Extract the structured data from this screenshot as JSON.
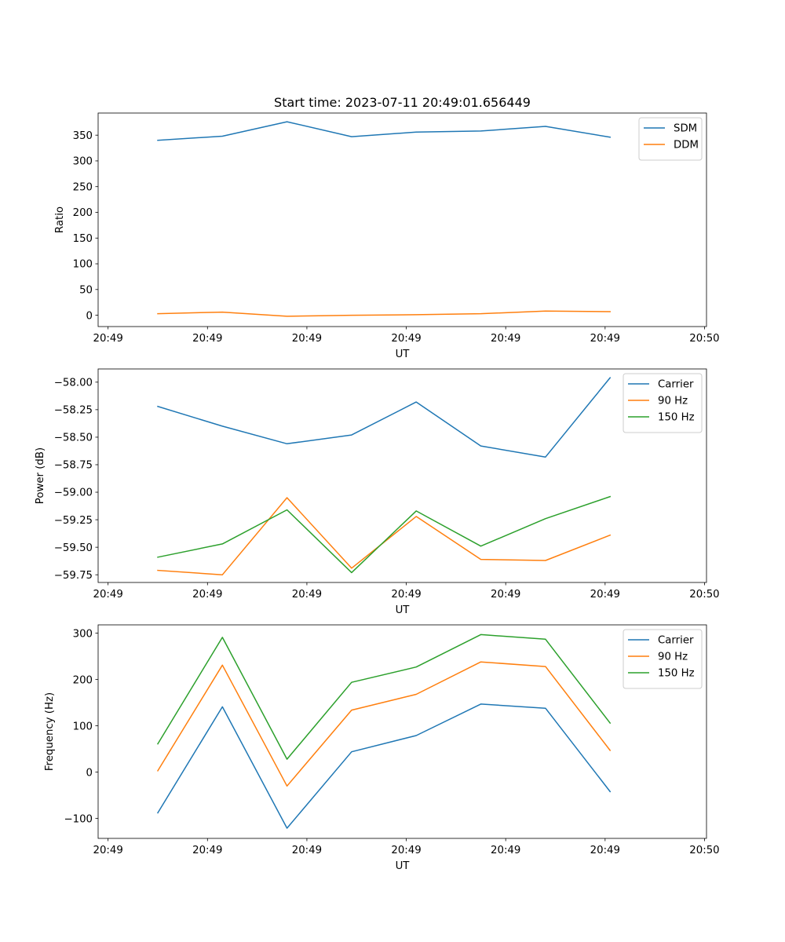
{
  "figure": {
    "title": "Start time: 2023-07-11 20:49:01.656449"
  },
  "colors": {
    "SDM": "#1f77b4",
    "DDM": "#ff7f0e",
    "Carrier": "#1f77b4",
    "90 Hz": "#ff7f0e",
    "150 Hz": "#2ca02c"
  },
  "chart_data": [
    {
      "type": "line",
      "title": "Start time: 2023-07-11 20:49:01.656449",
      "xlabel": "UT",
      "ylabel": "Ratio",
      "x_tick_labels": [
        "20:49",
        "20:49",
        "20:49",
        "20:49",
        "20:49",
        "20:49",
        "20:50"
      ],
      "x_tick_values": [
        0,
        1,
        2,
        3,
        4,
        5,
        6
      ],
      "x": [
        0.5,
        1.15,
        1.8,
        2.45,
        3.1,
        3.75,
        4.4,
        5.05
      ],
      "xlim": [
        -0.1,
        6.02
      ],
      "ylim": [
        -22,
        393
      ],
      "y_ticks": [
        0,
        50,
        100,
        150,
        200,
        250,
        300,
        350
      ],
      "y_tick_labels": [
        "0",
        "50",
        "100",
        "150",
        "200",
        "250",
        "300",
        "350"
      ],
      "legend": "top-right",
      "series": [
        {
          "name": "SDM",
          "values": [
            340,
            348,
            376,
            347,
            356,
            358,
            367,
            346
          ]
        },
        {
          "name": "DDM",
          "values": [
            3,
            6,
            -2,
            0,
            1,
            3,
            8,
            7
          ]
        }
      ]
    },
    {
      "type": "line",
      "title": "",
      "xlabel": "UT",
      "ylabel": "Power (dB)",
      "x_tick_labels": [
        "20:49",
        "20:49",
        "20:49",
        "20:49",
        "20:49",
        "20:49",
        "20:50"
      ],
      "x_tick_values": [
        0,
        1,
        2,
        3,
        4,
        5,
        6
      ],
      "x": [
        0.5,
        1.15,
        1.8,
        2.45,
        3.1,
        3.75,
        4.4,
        5.05
      ],
      "xlim": [
        -0.1,
        6.02
      ],
      "ylim": [
        -59.82,
        -57.88
      ],
      "y_ticks": [
        -59.75,
        -59.5,
        -59.25,
        -59.0,
        -58.75,
        -58.5,
        -58.25,
        -58.0
      ],
      "y_tick_labels": [
        "−59.75",
        "−59.50",
        "−59.25",
        "−59.00",
        "−58.75",
        "−58.50",
        "−58.25",
        "−58.00"
      ],
      "legend": "top-right",
      "series": [
        {
          "name": "Carrier",
          "values": [
            -58.22,
            -58.4,
            -58.56,
            -58.48,
            -58.18,
            -58.58,
            -58.68,
            -57.96
          ]
        },
        {
          "name": "90 Hz",
          "values": [
            -59.71,
            -59.75,
            -59.05,
            -59.69,
            -59.22,
            -59.61,
            -59.62,
            -59.39
          ]
        },
        {
          "name": "150 Hz",
          "values": [
            -59.59,
            -59.47,
            -59.16,
            -59.73,
            -59.17,
            -59.49,
            -59.24,
            -59.04
          ]
        }
      ]
    },
    {
      "type": "line",
      "title": "",
      "xlabel": "UT",
      "ylabel": "Frequency (Hz)",
      "x_tick_labels": [
        "20:49",
        "20:49",
        "20:49",
        "20:49",
        "20:49",
        "20:49",
        "20:50"
      ],
      "x_tick_values": [
        0,
        1,
        2,
        3,
        4,
        5,
        6
      ],
      "x": [
        0.5,
        1.15,
        1.8,
        2.45,
        3.1,
        3.75,
        4.4,
        5.05
      ],
      "xlim": [
        -0.1,
        6.02
      ],
      "ylim": [
        -143,
        318
      ],
      "y_ticks": [
        -100,
        0,
        100,
        200,
        300
      ],
      "y_tick_labels": [
        "−100",
        "0",
        "100",
        "200",
        "300"
      ],
      "legend": "top-right",
      "series": [
        {
          "name": "Carrier",
          "values": [
            -88,
            141,
            -121,
            44,
            79,
            147,
            138,
            -42
          ]
        },
        {
          "name": "90 Hz",
          "values": [
            3,
            231,
            -30,
            134,
            168,
            238,
            228,
            47
          ]
        },
        {
          "name": "150 Hz",
          "values": [
            61,
            291,
            28,
            194,
            227,
            297,
            287,
            106
          ]
        }
      ]
    }
  ]
}
